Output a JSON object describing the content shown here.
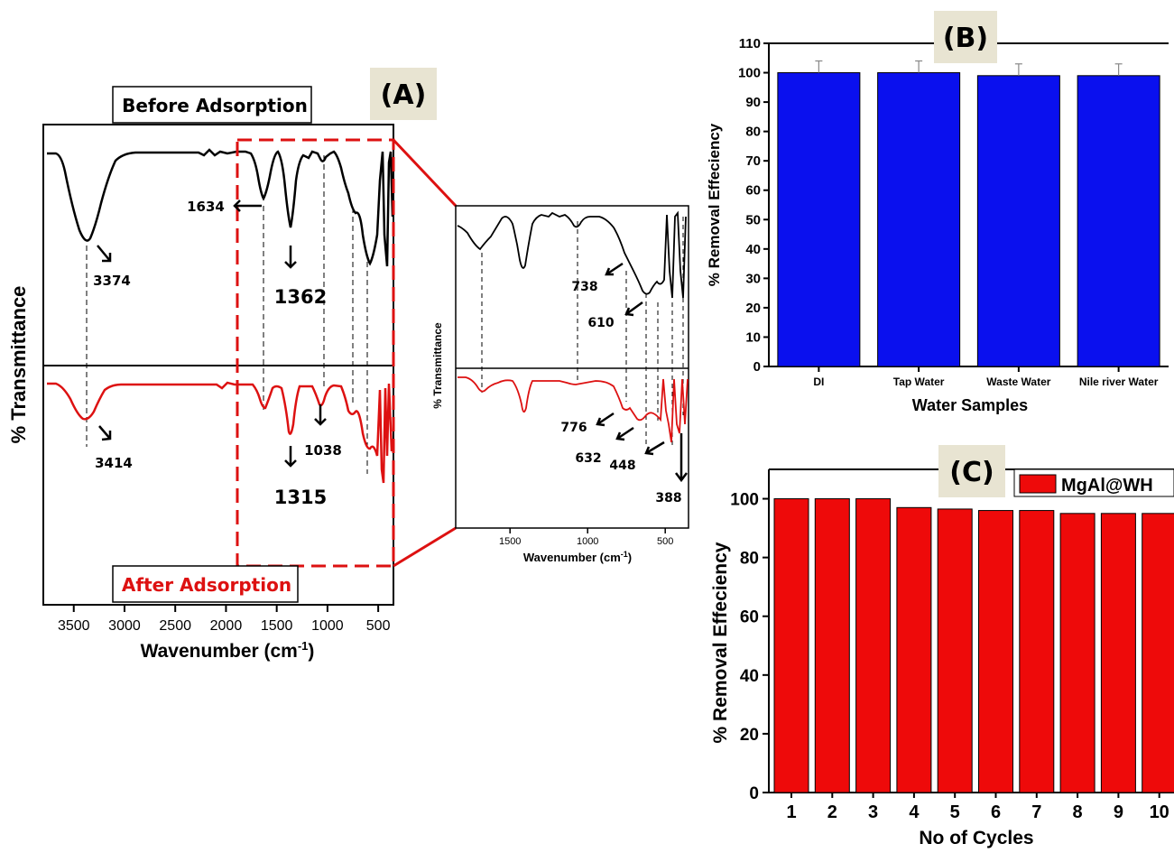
{
  "panel_a": {
    "label": "(A)",
    "before_label": "Before Adsorption",
    "after_label": "After Adsorption",
    "ylabel": "% Transmittance",
    "xlabel_main": "Wavenumber (cm",
    "xlabel_sup": "-1",
    "xlabel_close": ")",
    "xticks": [
      "3500",
      "3000",
      "2500",
      "2000",
      "1500",
      "1000",
      "500"
    ],
    "annotations_before": [
      "3374",
      "1634",
      "1362"
    ],
    "annotations_after": [
      "3414",
      "1038",
      "1315"
    ],
    "inset": {
      "ylabel": "% Transmittance",
      "xlabel": "Wavenumber (cm",
      "xlabel_sup": "-1",
      "xlabel_close": ")",
      "xticks": [
        "1500",
        "1000",
        "500"
      ],
      "annotations": [
        "738",
        "610",
        "776",
        "632",
        "448",
        "388"
      ]
    },
    "colors": {
      "before": "#000000",
      "after": "#dd1111",
      "dash_box": "#dd1111"
    }
  },
  "chart_data": [
    {
      "type": "bar",
      "panel": "(B)",
      "categories": [
        "DI",
        "Tap Water",
        "Waste Water",
        "Nile river Water"
      ],
      "values": [
        100,
        100,
        99,
        99
      ],
      "errors": [
        4,
        4,
        4,
        4
      ],
      "xlabel": "Water Samples",
      "ylabel": "% Removal Effeciency",
      "ylim": [
        0,
        110
      ],
      "yticks": [
        "0",
        "10",
        "20",
        "30",
        "40",
        "50",
        "60",
        "70",
        "80",
        "90",
        "100",
        "110"
      ],
      "color": "#0a10ee"
    },
    {
      "type": "bar",
      "panel": "(C)",
      "categories": [
        "1",
        "2",
        "3",
        "4",
        "5",
        "6",
        "7",
        "8",
        "9",
        "10"
      ],
      "series": [
        {
          "name": "MgAl@WH",
          "values": [
            100,
            100,
            100,
            97,
            96.5,
            96,
            96,
            95,
            95,
            95
          ]
        }
      ],
      "xlabel": "No of Cycles",
      "ylabel": "% Removal Effeciency",
      "ylim": [
        0,
        110
      ],
      "yticks": [
        "0",
        "20",
        "40",
        "60",
        "80",
        "100"
      ],
      "legend_position": "top-right",
      "color": "#ee0a0a"
    }
  ]
}
